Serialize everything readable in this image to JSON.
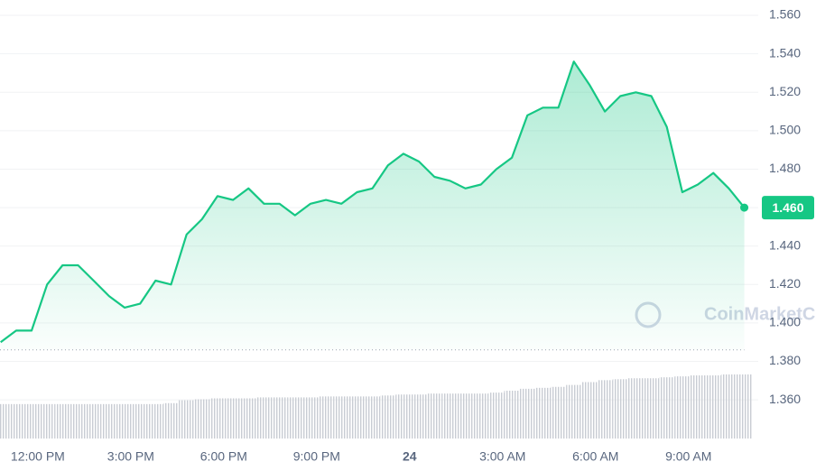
{
  "chart_data": {
    "type": "area",
    "color": "#16c784",
    "x": [
      10.8,
      11.3,
      11.8,
      12.3,
      12.8,
      13.3,
      13.8,
      14.3,
      14.8,
      15.3,
      15.8,
      16.3,
      16.8,
      17.3,
      17.8,
      18.3,
      18.8,
      19.3,
      19.8,
      20.3,
      20.8,
      21.3,
      21.8,
      22.3,
      22.8,
      23.3,
      23.8,
      24.3,
      24.8,
      25.3,
      25.8,
      26.3,
      26.8,
      27.3,
      27.8,
      28.3,
      28.8,
      29.3,
      29.8,
      30.3,
      30.8,
      31.3,
      31.8,
      32.3,
      32.8,
      33.3,
      33.8,
      34.3,
      34.8
    ],
    "values": [
      1.39,
      1.396,
      1.396,
      1.42,
      1.43,
      1.43,
      1.422,
      1.414,
      1.408,
      1.41,
      1.422,
      1.42,
      1.446,
      1.454,
      1.466,
      1.464,
      1.47,
      1.462,
      1.462,
      1.456,
      1.462,
      1.464,
      1.462,
      1.468,
      1.47,
      1.482,
      1.488,
      1.484,
      1.476,
      1.474,
      1.47,
      1.472,
      1.48,
      1.486,
      1.508,
      1.512,
      1.512,
      1.536,
      1.524,
      1.51,
      1.518,
      1.52,
      1.518,
      1.502,
      1.468,
      1.472,
      1.478,
      1.47,
      1.46
    ],
    "volume": [
      36,
      36,
      36,
      36,
      36,
      36,
      36,
      36,
      36,
      36,
      36,
      37,
      40,
      41,
      42,
      42,
      42,
      43,
      43,
      43,
      43,
      44,
      44,
      44,
      44,
      45,
      46,
      46,
      47,
      47,
      47,
      47,
      48,
      50,
      52,
      53,
      54,
      56,
      59,
      61,
      62,
      63,
      63,
      64,
      65,
      66,
      66,
      67,
      67
    ],
    "vlim": [
      0,
      100
    ],
    "xlim": [
      10.78,
      35.25
    ],
    "ylim": [
      1.338,
      1.568
    ],
    "xticks": [
      {
        "value": 12,
        "label": "12:00 PM"
      },
      {
        "value": 15,
        "label": "3:00 PM"
      },
      {
        "value": 18,
        "label": "6:00 PM"
      },
      {
        "value": 21,
        "label": "9:00 PM"
      },
      24,
      {
        "value": 27,
        "label": "3:00 AM"
      },
      {
        "value": 30,
        "label": "6:00 AM"
      },
      {
        "value": 33,
        "label": "9:00 AM"
      }
    ],
    "yticks": [
      {
        "value": 1.36,
        "label": "1.360"
      },
      {
        "value": 1.38,
        "label": "1.380"
      },
      {
        "value": 1.4,
        "label": "1.400"
      },
      {
        "value": 1.42,
        "label": "1.420"
      },
      {
        "value": 1.44,
        "label": "1.440"
      },
      {
        "value": 1.46,
        "label": "1.460"
      },
      {
        "value": 1.48,
        "label": "1.480"
      },
      {
        "value": 1.5,
        "label": "1.500"
      },
      {
        "value": 1.52,
        "label": "1.520"
      },
      {
        "value": 1.54,
        "label": "1.540"
      },
      {
        "value": 1.56,
        "label": "1.560"
      }
    ],
    "reference_line": 1.386,
    "last_price_label": "1.460",
    "watermark": "CoinMarketCap",
    "grid": true
  }
}
